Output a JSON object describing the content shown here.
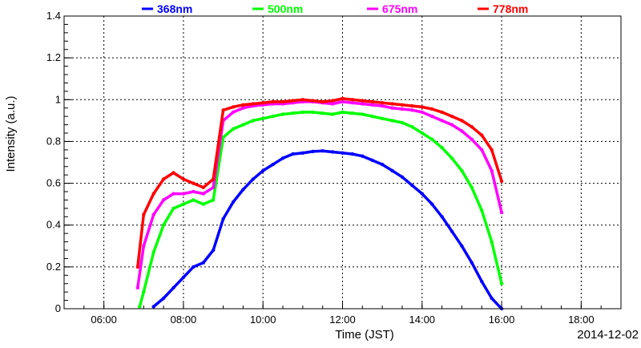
{
  "chart_data": {
    "type": "scatter",
    "title": "",
    "xlabel": "Time (JST)",
    "ylabel": "Intensity (a.u.)",
    "date_label": "2014-12-02",
    "x_ticks": [
      "06:00",
      "08:00",
      "10:00",
      "12:00",
      "14:00",
      "16:00",
      "18:00"
    ],
    "x_tick_hours": [
      6,
      8,
      10,
      12,
      14,
      16,
      18
    ],
    "xlim_hours": [
      5.0,
      19.0
    ],
    "ylim": [
      0,
      1.4
    ],
    "y_ticks": [
      "0",
      "0.2",
      "0.4",
      "0.6",
      "0.8",
      "1",
      "1.2",
      "1.4"
    ],
    "y_tick_values": [
      0,
      0.2,
      0.4,
      0.6,
      0.8,
      1.0,
      1.2,
      1.4
    ],
    "grid": true,
    "legend_position": "top",
    "series": [
      {
        "name": "368nm",
        "color": "#0000ff",
        "x_hours": [
          7.25,
          7.5,
          7.75,
          8.0,
          8.25,
          8.5,
          8.75,
          9.0,
          9.25,
          9.5,
          9.75,
          10.0,
          10.25,
          10.5,
          10.75,
          11.0,
          11.25,
          11.5,
          11.75,
          12.0,
          12.25,
          12.5,
          12.75,
          13.0,
          13.25,
          13.5,
          13.75,
          14.0,
          14.25,
          14.5,
          14.75,
          15.0,
          15.25,
          15.5,
          15.75,
          16.0
        ],
        "values": [
          0.01,
          0.05,
          0.1,
          0.15,
          0.2,
          0.22,
          0.28,
          0.43,
          0.51,
          0.57,
          0.62,
          0.66,
          0.69,
          0.72,
          0.74,
          0.745,
          0.752,
          0.755,
          0.75,
          0.745,
          0.74,
          0.73,
          0.71,
          0.69,
          0.66,
          0.63,
          0.59,
          0.55,
          0.5,
          0.44,
          0.37,
          0.3,
          0.22,
          0.13,
          0.05,
          0.0
        ]
      },
      {
        "name": "500nm",
        "color": "#00ff00",
        "x_hours": [
          6.9,
          7.0,
          7.25,
          7.5,
          7.75,
          8.0,
          8.25,
          8.5,
          8.75,
          9.0,
          9.25,
          9.5,
          9.75,
          10.0,
          10.25,
          10.5,
          10.75,
          11.0,
          11.25,
          11.5,
          11.75,
          12.0,
          12.25,
          12.5,
          12.75,
          13.0,
          13.25,
          13.5,
          13.75,
          14.0,
          14.25,
          14.5,
          14.75,
          15.0,
          15.25,
          15.5,
          15.75,
          16.0
        ],
        "values": [
          0.01,
          0.08,
          0.27,
          0.4,
          0.48,
          0.5,
          0.52,
          0.5,
          0.52,
          0.82,
          0.86,
          0.88,
          0.9,
          0.91,
          0.92,
          0.93,
          0.935,
          0.94,
          0.94,
          0.935,
          0.93,
          0.94,
          0.935,
          0.93,
          0.92,
          0.91,
          0.9,
          0.89,
          0.87,
          0.84,
          0.81,
          0.77,
          0.72,
          0.66,
          0.58,
          0.47,
          0.32,
          0.12
        ]
      },
      {
        "name": "675nm",
        "color": "#ff00ff",
        "x_hours": [
          6.85,
          7.0,
          7.25,
          7.5,
          7.75,
          8.0,
          8.25,
          8.5,
          8.75,
          9.0,
          9.25,
          9.5,
          9.75,
          10.0,
          10.25,
          10.5,
          10.75,
          11.0,
          11.25,
          11.5,
          11.75,
          12.0,
          12.25,
          12.5,
          12.75,
          13.0,
          13.25,
          13.5,
          13.75,
          14.0,
          14.25,
          14.5,
          14.75,
          15.0,
          15.25,
          15.5,
          15.75,
          16.0
        ],
        "values": [
          0.1,
          0.3,
          0.45,
          0.52,
          0.55,
          0.55,
          0.56,
          0.55,
          0.58,
          0.9,
          0.94,
          0.96,
          0.97,
          0.975,
          0.98,
          0.98,
          0.985,
          0.99,
          0.99,
          0.985,
          0.98,
          0.99,
          0.985,
          0.98,
          0.975,
          0.97,
          0.96,
          0.955,
          0.95,
          0.94,
          0.92,
          0.9,
          0.88,
          0.85,
          0.81,
          0.76,
          0.66,
          0.46
        ]
      },
      {
        "name": "778nm",
        "color": "#ff0000",
        "x_hours": [
          6.85,
          7.0,
          7.25,
          7.5,
          7.75,
          8.0,
          8.25,
          8.5,
          8.75,
          9.0,
          9.25,
          9.5,
          9.75,
          10.0,
          10.25,
          10.5,
          10.75,
          11.0,
          11.25,
          11.5,
          11.75,
          12.0,
          12.25,
          12.5,
          12.75,
          13.0,
          13.25,
          13.5,
          13.75,
          14.0,
          14.25,
          14.5,
          14.75,
          15.0,
          15.25,
          15.5,
          15.75,
          16.0
        ],
        "values": [
          0.2,
          0.45,
          0.55,
          0.62,
          0.65,
          0.62,
          0.6,
          0.58,
          0.62,
          0.95,
          0.965,
          0.975,
          0.98,
          0.985,
          0.99,
          0.99,
          0.995,
          1.0,
          0.995,
          0.99,
          0.995,
          1.005,
          1.0,
          0.995,
          0.99,
          0.985,
          0.98,
          0.975,
          0.97,
          0.965,
          0.955,
          0.94,
          0.92,
          0.9,
          0.87,
          0.83,
          0.76,
          0.61
        ]
      }
    ]
  }
}
